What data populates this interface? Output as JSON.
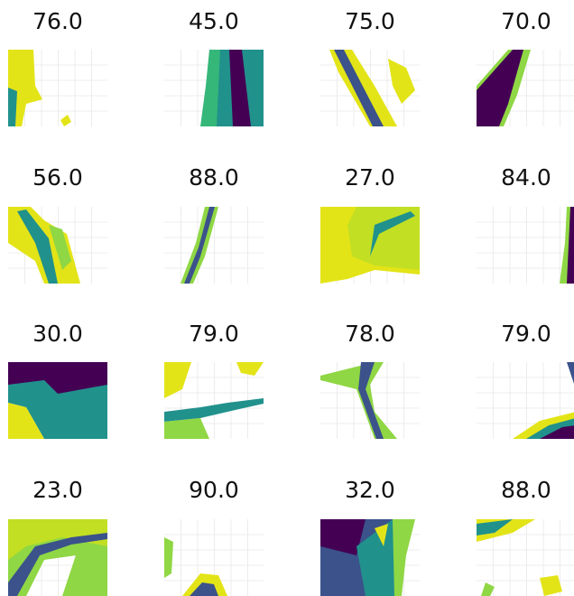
{
  "tiles": [
    {
      "title": "76.0"
    },
    {
      "title": "45.0"
    },
    {
      "title": "75.0"
    },
    {
      "title": "70.0"
    },
    {
      "title": "56.0"
    },
    {
      "title": "88.0"
    },
    {
      "title": "27.0"
    },
    {
      "title": "84.0"
    },
    {
      "title": "30.0"
    },
    {
      "title": "79.0"
    },
    {
      "title": "78.0"
    },
    {
      "title": "79.0"
    },
    {
      "title": "23.0"
    },
    {
      "title": "90.0"
    },
    {
      "title": "32.0"
    },
    {
      "title": "88.0"
    }
  ]
}
